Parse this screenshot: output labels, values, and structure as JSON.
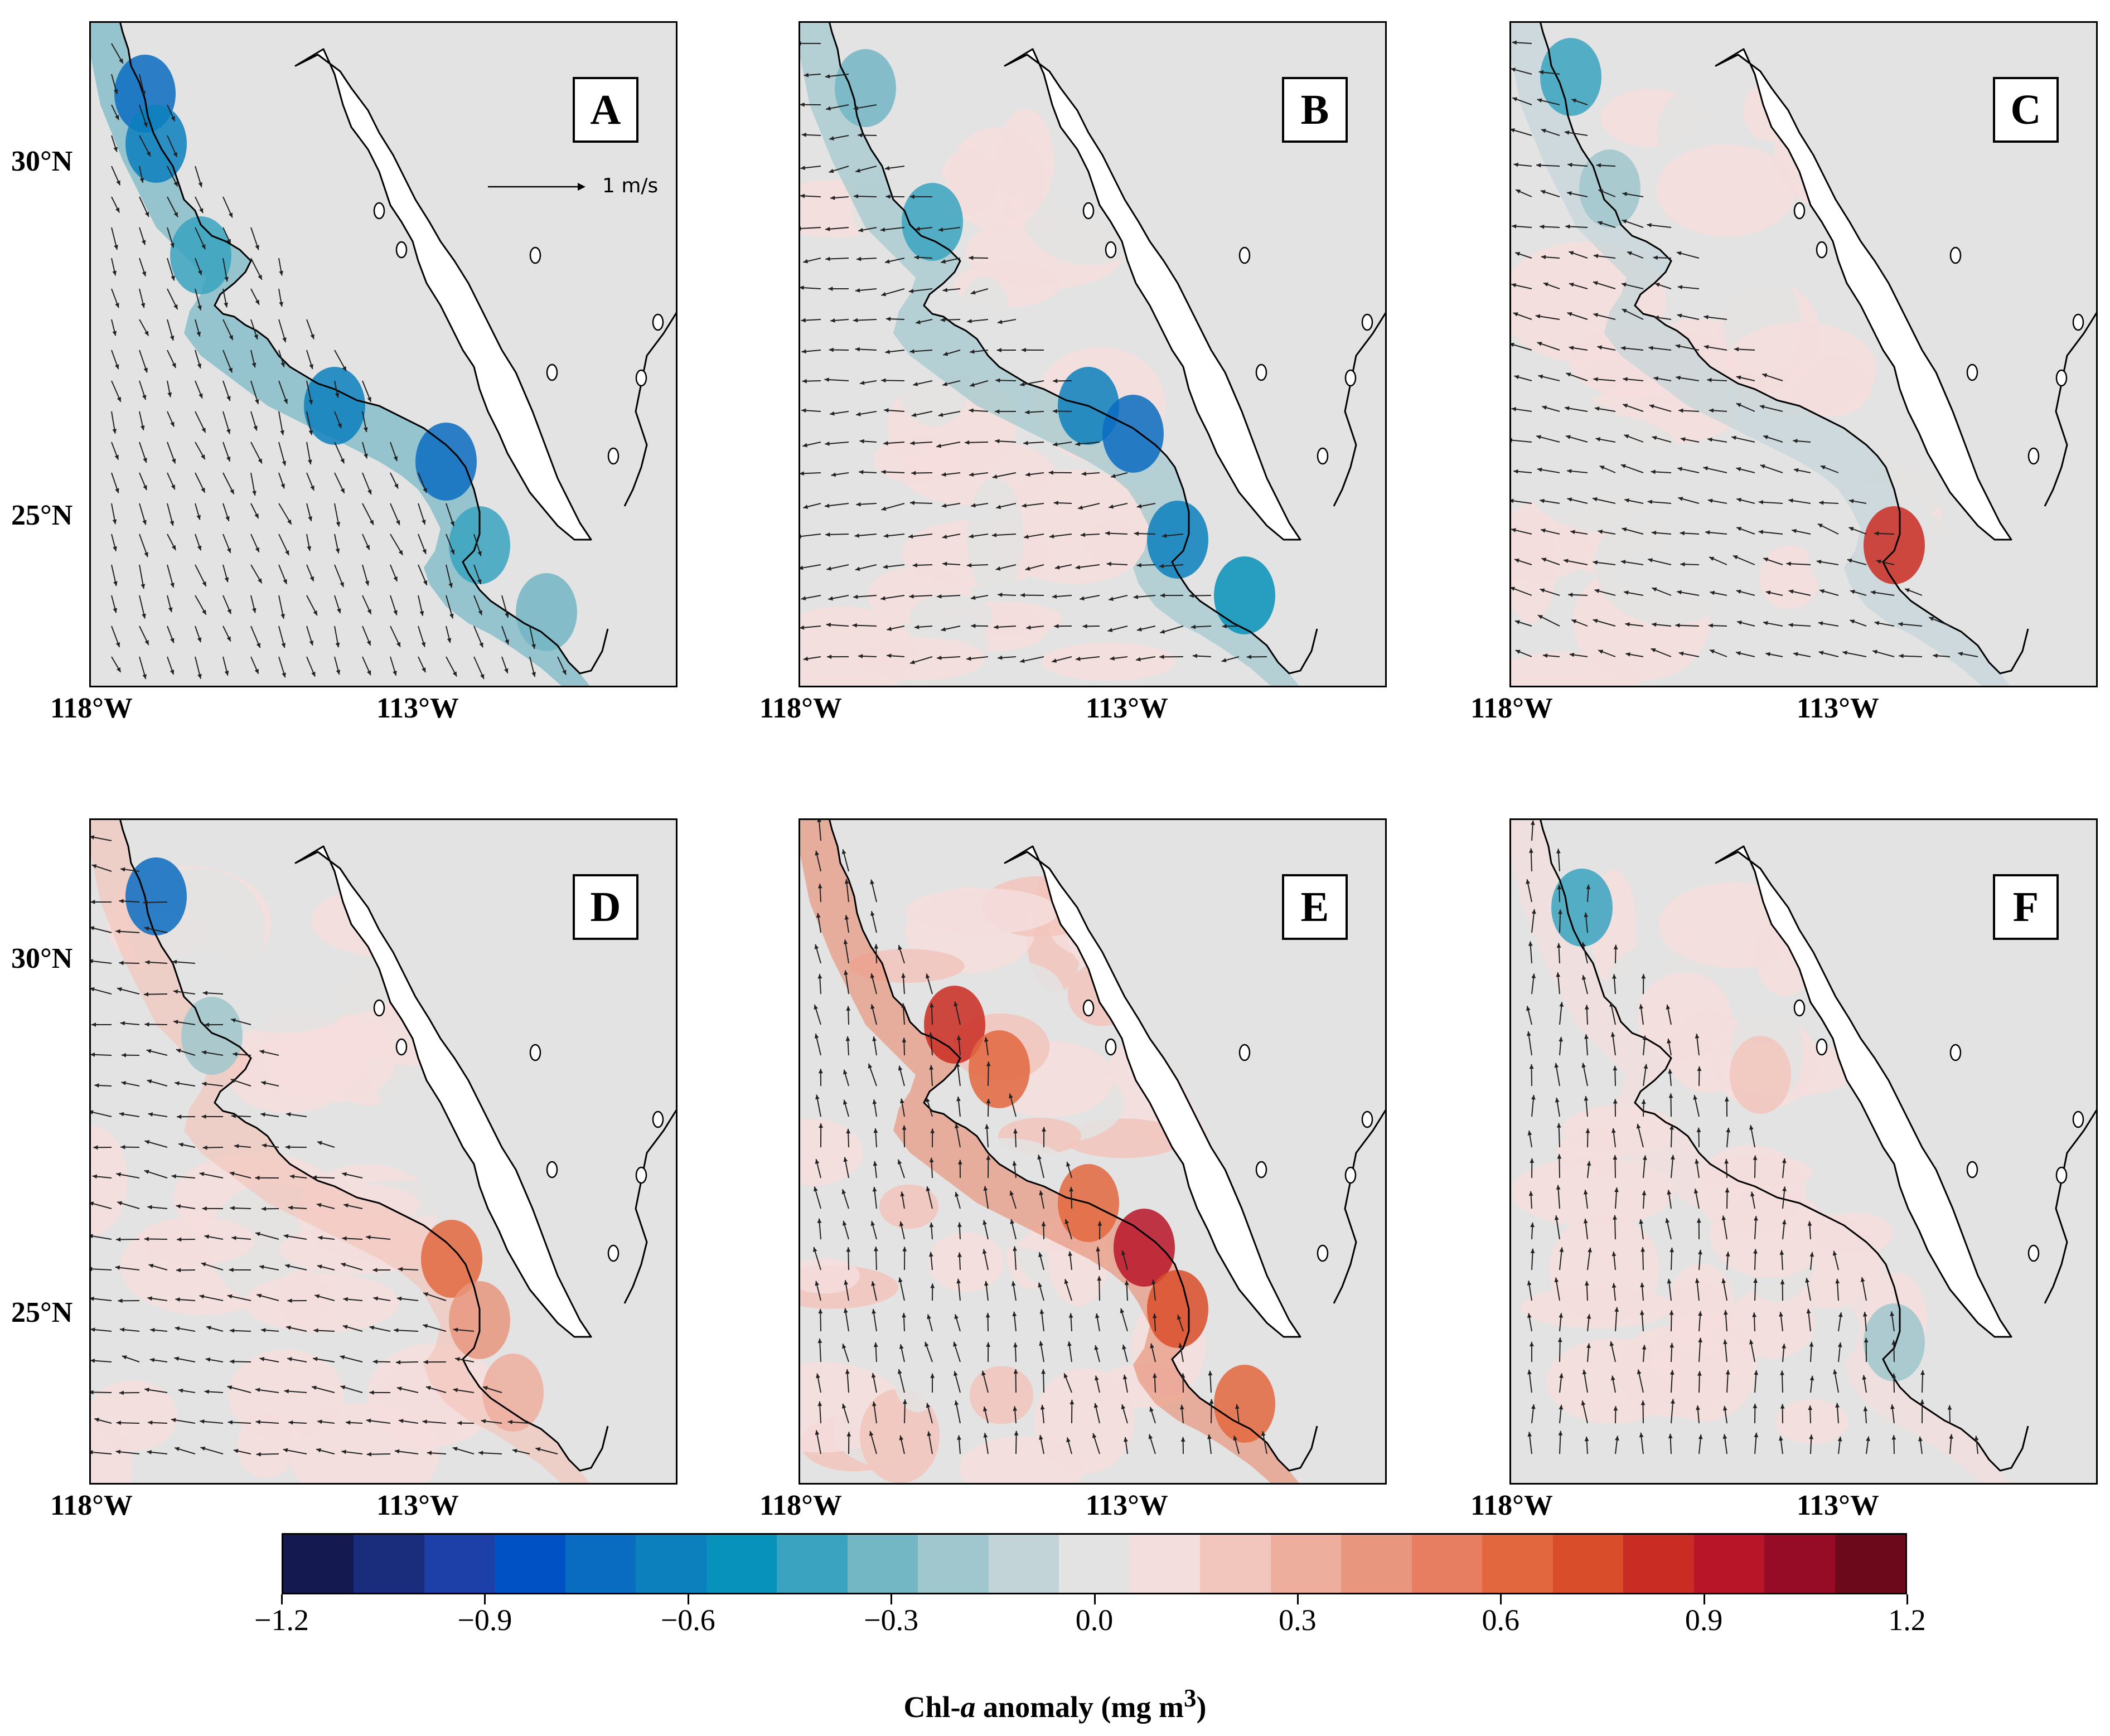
{
  "figure": {
    "panels": [
      {
        "id": "A",
        "pattern": "negative-strong",
        "show_scale": true
      },
      {
        "id": "B",
        "pattern": "negative-south",
        "show_scale": false
      },
      {
        "id": "C",
        "pattern": "weak",
        "show_scale": false
      },
      {
        "id": "D",
        "pattern": "mixed",
        "show_scale": false
      },
      {
        "id": "E",
        "pattern": "positive-strong",
        "show_scale": false
      },
      {
        "id": "F",
        "pattern": "weak-positive",
        "show_scale": false
      }
    ],
    "scale_arrow_label": "1 m/s",
    "lat_labels": [
      "30°N",
      "25°N"
    ],
    "lon_labels": [
      "118°W",
      "113°W"
    ]
  },
  "colorbar": {
    "ticks": [
      "−1.2",
      "−0.9",
      "−0.6",
      "−0.3",
      "0.0",
      "0.3",
      "0.6",
      "0.9",
      "1.2"
    ],
    "label_main": "Chl-",
    "label_italic": "a",
    "label_rest": " anomaly (mg m",
    "label_sup": "3",
    "label_close": ")",
    "colors": [
      "#14194f",
      "#1a2d7c",
      "#1c3fa8",
      "#0052c4",
      "#0a6cc1",
      "#0c80bd",
      "#0692ba",
      "#3aa3bf",
      "#73b6c4",
      "#9fc7cd",
      "#c3d4d8",
      "#e3e3e3",
      "#f4dedd",
      "#f2c6bc",
      "#edae9d",
      "#e8967e",
      "#e77e62",
      "#e2673f",
      "#d94d2a",
      "#c92c22",
      "#b91528",
      "#960b25",
      "#6c0a1c"
    ]
  }
}
